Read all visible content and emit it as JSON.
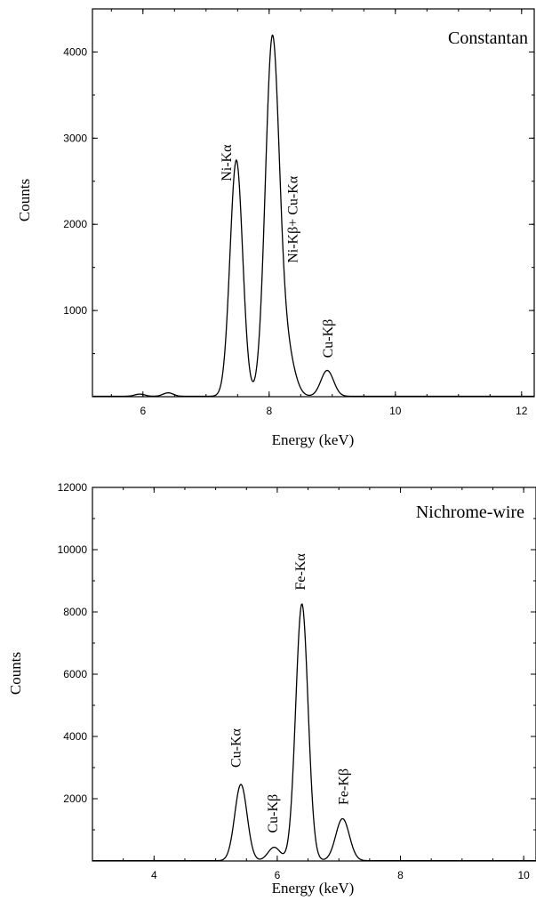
{
  "chart_data": [
    {
      "type": "line",
      "title": "Constantan",
      "xlabel": "Energy (keV)",
      "ylabel": "Counts",
      "xlim": [
        5.2,
        12.2
      ],
      "ylim": [
        0,
        4500
      ],
      "xticks": [
        6,
        8,
        10,
        12
      ],
      "yticks": [
        1000,
        2000,
        3000,
        4000
      ],
      "baseline_counts": 5,
      "peaks": [
        {
          "label": "",
          "center": 5.95,
          "height": 25,
          "sigma": 0.08
        },
        {
          "label": "",
          "center": 6.4,
          "height": 40,
          "sigma": 0.08
        },
        {
          "label": "Ni-Kα",
          "center": 7.48,
          "height": 2740,
          "sigma": 0.1
        },
        {
          "label": "Ni-Kβ+ Cu-Kα",
          "center": 8.05,
          "height": 4110,
          "sigma": 0.11
        },
        {
          "label": "",
          "center": 8.28,
          "height": 500,
          "sigma": 0.12
        },
        {
          "label": "Cu-Kβ",
          "center": 8.92,
          "height": 300,
          "sigma": 0.1
        }
      ],
      "annotations": [
        {
          "text": "Ni-Kα",
          "x": 7.4,
          "y": 2500
        },
        {
          "text": "Ni-Kβ+ Cu-Kα",
          "x": 8.45,
          "y": 1550
        },
        {
          "text": "Cu-Kβ",
          "x": 9.0,
          "y": 450
        }
      ]
    },
    {
      "type": "line",
      "title": "Nichrome-wire",
      "xlabel": "Energy (keV)",
      "ylabel": "Counts",
      "xlim": [
        3,
        10.2
      ],
      "ylim": [
        0,
        12000
      ],
      "xticks": [
        4,
        6,
        8,
        10
      ],
      "yticks": [
        2000,
        4000,
        6000,
        8000,
        10000,
        12000
      ],
      "baseline_counts": 10,
      "peaks": [
        {
          "label": "Cu-Kα",
          "center": 5.41,
          "height": 2450,
          "sigma": 0.1
        },
        {
          "label": "Cu-Kβ",
          "center": 5.95,
          "height": 430,
          "sigma": 0.1
        },
        {
          "label": "Fe-Kα",
          "center": 6.4,
          "height": 8250,
          "sigma": 0.1
        },
        {
          "label": "Fe-Kβ",
          "center": 7.06,
          "height": 1350,
          "sigma": 0.11
        }
      ],
      "annotations": [
        {
          "text": "Cu-Kα",
          "x": 5.4,
          "y": 3000
        },
        {
          "text": "Cu-Kβ",
          "x": 6.0,
          "y": 900
        },
        {
          "text": "Fe-Kα",
          "x": 6.45,
          "y": 8700
        },
        {
          "text": "Fe-Kβ",
          "x": 7.15,
          "y": 1800
        }
      ]
    }
  ]
}
